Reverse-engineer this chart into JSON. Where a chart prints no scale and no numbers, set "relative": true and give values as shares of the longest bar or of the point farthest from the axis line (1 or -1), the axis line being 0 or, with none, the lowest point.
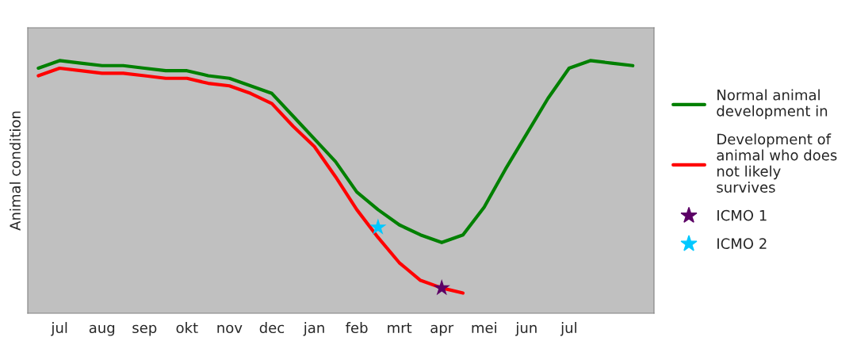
{
  "chart_data": {
    "type": "line",
    "relative": true,
    "ylabel": "Animal condition",
    "legend": "right",
    "grid": false,
    "line_style": "solid",
    "categories": [
      null,
      "jul",
      null,
      "aug",
      null,
      "sep",
      null,
      "okt",
      null,
      "nov",
      null,
      "dec",
      null,
      "jan",
      null,
      "feb",
      null,
      "mrt",
      null,
      "apr",
      null,
      "mei",
      null,
      "jun",
      null,
      "jul",
      null,
      null,
      null
    ],
    "series": [
      {
        "name": "Normal animal development in",
        "color": "#008000",
        "values": [
          0.97,
          1.0,
          0.99,
          0.98,
          0.98,
          0.97,
          0.96,
          0.96,
          0.94,
          0.93,
          0.9,
          0.87,
          0.78,
          0.69,
          0.6,
          0.48,
          0.41,
          0.35,
          0.31,
          0.28,
          0.31,
          0.42,
          0.57,
          0.71,
          0.85,
          0.97,
          1.0,
          0.99,
          0.98
        ]
      },
      {
        "name": "Development of animal who does not likely survives",
        "color": "#ff0000",
        "values": [
          0.94,
          0.97,
          0.96,
          0.95,
          0.95,
          0.94,
          0.93,
          0.93,
          0.91,
          0.9,
          0.87,
          0.83,
          0.74,
          0.66,
          0.54,
          0.41,
          0.3,
          0.2,
          0.13,
          0.1,
          0.08,
          null,
          null,
          null,
          null,
          null,
          null,
          null,
          null
        ]
      },
      {
        "name": "ICMO 1",
        "type": "scatter",
        "marker": "star",
        "color": "#5c0066",
        "values": [
          null,
          null,
          null,
          null,
          null,
          null,
          null,
          null,
          null,
          null,
          null,
          null,
          null,
          null,
          null,
          null,
          null,
          null,
          null,
          0.1,
          null,
          null,
          null,
          null,
          null,
          null,
          null,
          null,
          null
        ]
      },
      {
        "name": "ICMO 2",
        "type": "scatter",
        "marker": "star",
        "color": "#00c8ff",
        "values": [
          null,
          null,
          null,
          null,
          null,
          null,
          null,
          null,
          null,
          null,
          null,
          null,
          null,
          null,
          null,
          null,
          0.34,
          null,
          null,
          null,
          null,
          null,
          null,
          null,
          null,
          null,
          null,
          null,
          null
        ]
      }
    ]
  }
}
